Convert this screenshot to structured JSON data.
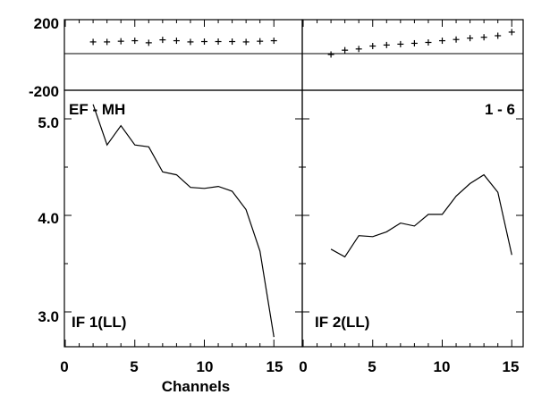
{
  "chart_data": {
    "type": "line",
    "title_left": "EF - MH",
    "title_right": "1 - 6",
    "xlabel": "Channels",
    "x_ticks": [
      "0",
      "5",
      "10",
      "15"
    ],
    "xlim": [
      0,
      16
    ],
    "phase_panel": {
      "type": "scatter",
      "ylim": [
        -200,
        200
      ],
      "y_ticks": [
        "200",
        "-200"
      ],
      "zero_line": 0
    },
    "amp_panel": {
      "ylim": [
        2.7,
        5.2
      ],
      "y_ticks": [
        "5.0",
        "4.0",
        "3.0"
      ]
    },
    "panels": [
      {
        "label": "IF 1(LL)",
        "phase": {
          "x": [
            2,
            3,
            4,
            5,
            6,
            7,
            8,
            9,
            10,
            11,
            12,
            13,
            14,
            15
          ],
          "y": [
            68,
            68,
            72,
            75,
            63,
            80,
            75,
            68,
            70,
            70,
            70,
            68,
            72,
            75
          ]
        },
        "amplitude": {
          "x": [
            2,
            3,
            4,
            5,
            6,
            7,
            8,
            9,
            10,
            11,
            12,
            13,
            14,
            15
          ],
          "y": [
            5.15,
            4.73,
            4.93,
            4.73,
            4.71,
            4.45,
            4.42,
            4.29,
            4.28,
            4.3,
            4.25,
            4.06,
            3.63,
            2.74
          ]
        }
      },
      {
        "label": "IF 2(LL)",
        "phase": {
          "x": [
            2,
            3,
            4,
            5,
            6,
            7,
            8,
            9,
            10,
            11,
            12,
            13,
            14,
            15
          ],
          "y": [
            -5,
            20,
            27,
            44,
            50,
            55,
            60,
            65,
            75,
            82,
            90,
            95,
            104,
            125
          ]
        },
        "amplitude": {
          "x": [
            2,
            3,
            4,
            5,
            6,
            7,
            8,
            9,
            10,
            11,
            12,
            13,
            14,
            15
          ],
          "y": [
            3.65,
            3.57,
            3.79,
            3.78,
            3.83,
            3.92,
            3.89,
            4.01,
            4.01,
            4.2,
            4.33,
            4.42,
            4.24,
            3.59
          ]
        }
      }
    ]
  }
}
